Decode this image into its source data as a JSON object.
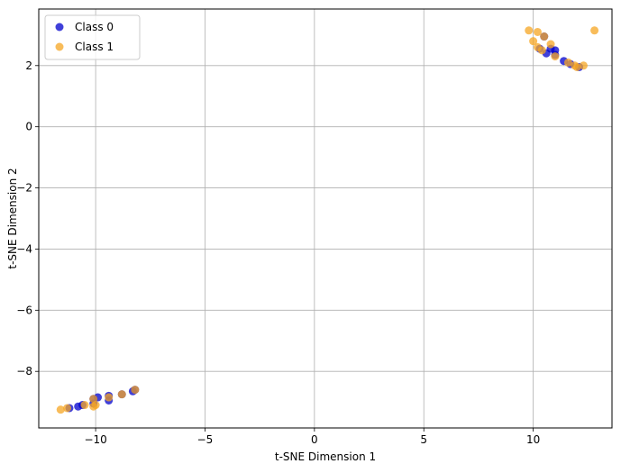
{
  "chart_data": {
    "type": "scatter",
    "xlabel": "t-SNE Dimension 1",
    "ylabel": "t-SNE Dimension 2",
    "xlim": [
      -12.6,
      13.6
    ],
    "ylim": [
      -9.85,
      3.85
    ],
    "x_ticks": [
      -10,
      -5,
      0,
      5,
      10
    ],
    "y_ticks": [
      -8,
      -6,
      -4,
      -2,
      0,
      2
    ],
    "grid": true,
    "legend_position": "top-left",
    "series": [
      {
        "name": "Class 0",
        "color": "#0000cc",
        "points": [
          [
            10.5,
            2.95
          ],
          [
            10.6,
            2.4
          ],
          [
            10.8,
            2.55
          ],
          [
            11.0,
            2.5
          ],
          [
            11.0,
            2.35
          ],
          [
            11.4,
            2.15
          ],
          [
            11.7,
            2.05
          ],
          [
            10.3,
            2.55
          ],
          [
            12.1,
            1.95
          ],
          [
            -11.2,
            -9.2
          ],
          [
            -10.8,
            -9.15
          ],
          [
            -10.6,
            -9.1
          ],
          [
            -10.1,
            -9.05
          ],
          [
            -9.9,
            -8.85
          ],
          [
            -9.4,
            -8.95
          ],
          [
            -9.4,
            -8.8
          ],
          [
            -8.8,
            -8.75
          ],
          [
            -8.3,
            -8.65
          ],
          [
            -8.2,
            -8.6
          ],
          [
            -10.1,
            -8.9
          ]
        ]
      },
      {
        "name": "Class 1",
        "color": "#f5a623",
        "points": [
          [
            9.8,
            3.15
          ],
          [
            10.2,
            3.1
          ],
          [
            10.0,
            2.8
          ],
          [
            10.2,
            2.6
          ],
          [
            10.4,
            2.5
          ],
          [
            10.8,
            2.7
          ],
          [
            11.0,
            2.3
          ],
          [
            11.6,
            2.1
          ],
          [
            11.9,
            2.0
          ],
          [
            12.0,
            1.95
          ],
          [
            12.3,
            2.0
          ],
          [
            12.8,
            3.15
          ],
          [
            10.5,
            2.95
          ],
          [
            -11.6,
            -9.25
          ],
          [
            -11.3,
            -9.2
          ],
          [
            -10.5,
            -9.1
          ],
          [
            -10.1,
            -9.15
          ],
          [
            -10.1,
            -8.9
          ],
          [
            -9.4,
            -8.85
          ],
          [
            -8.8,
            -8.75
          ],
          [
            -8.2,
            -8.6
          ],
          [
            -10.0,
            -9.1
          ]
        ]
      }
    ]
  }
}
